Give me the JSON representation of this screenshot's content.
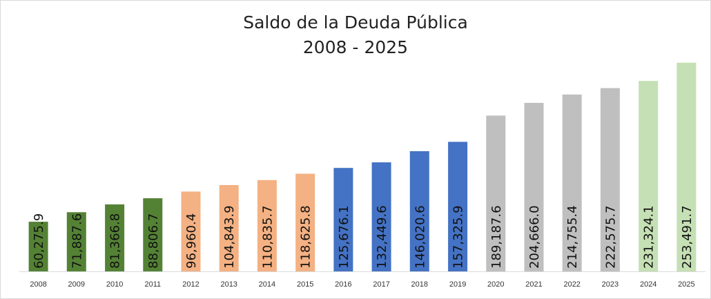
{
  "chart_data": {
    "type": "bar",
    "title": "Saldo de la Deuda Pública",
    "subtitle": "2008 - 2025",
    "xlabel": "",
    "ylabel": "",
    "ylim": [
      0,
      260000
    ],
    "grid": false,
    "legend": "none",
    "categories": [
      "2008",
      "2009",
      "2010",
      "2011",
      "2012",
      "2013",
      "2014",
      "2015",
      "2016",
      "2017",
      "2018",
      "2019",
      "2020",
      "2021",
      "2022",
      "2023",
      "2024",
      "2025"
    ],
    "values": [
      60275.9,
      71887.6,
      81366.8,
      88806.7,
      96960.4,
      104843.9,
      110835.7,
      118625.8,
      125676.1,
      132449.6,
      146020.6,
      157325.9,
      189187.6,
      204666.0,
      214755.4,
      222575.7,
      231324.1,
      253491.7
    ],
    "data_labels": [
      "60,275.9",
      "71,887.6",
      "81,366.8",
      "88,806.7",
      "96,960.4",
      "104,843.9",
      "110,835.7",
      "118,625.8",
      "125,676.1",
      "132,449.6",
      "146,020.6",
      "157,325.9",
      "189,187.6",
      "204,666.0",
      "214,755.4",
      "222,575.7",
      "231,324.1",
      "253,491.7"
    ],
    "bar_colors": [
      "#548235",
      "#548235",
      "#548235",
      "#548235",
      "#f4b183",
      "#f4b183",
      "#f4b183",
      "#f4b183",
      "#4472c4",
      "#4472c4",
      "#4472c4",
      "#4472c4",
      "#bfbfbf",
      "#bfbfbf",
      "#bfbfbf",
      "#bfbfbf",
      "#c5e0b4",
      "#c5e0b4"
    ]
  }
}
